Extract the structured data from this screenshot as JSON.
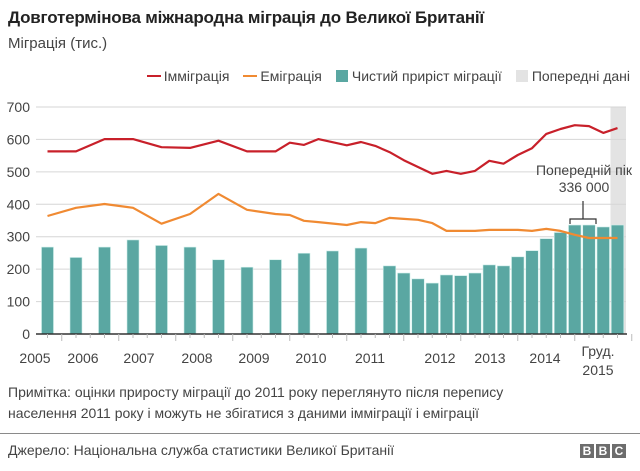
{
  "header": {
    "title": "Довготермінова міжнародна міграція до Великої Британії",
    "subtitle": "Міграція (тис.)"
  },
  "legend": [
    {
      "label": "Імміграція",
      "kind": "line",
      "color": "#c8202a"
    },
    {
      "label": "Еміграція",
      "kind": "line",
      "color": "#f08a32"
    },
    {
      "label": "Чистий приріст міграції",
      "kind": "box",
      "color": "#5aa7a2"
    },
    {
      "label": "Попередні дані",
      "kind": "box",
      "color": "#e3e3e3"
    }
  ],
  "annotation": {
    "line1": "Попередній пік",
    "line2": "336 000"
  },
  "footer": {
    "note_line1": "Примітка: оцінки приросту міграції до 2011 року переглянуто після перепису",
    "note_line2": "населення 2011 року і можуть не збігатися з даними імміграції і еміграції",
    "source": "Джерело: Національна служба статистики Великої Британії",
    "logo": [
      "B",
      "B",
      "C"
    ]
  },
  "chart_data": {
    "type": "bar",
    "title": "Довготермінова міжнародна міграція до Великої Британії",
    "ylabel": "Міграція (тис.)",
    "xlabel": "",
    "ylim": [
      0,
      700
    ],
    "yticks": [
      0,
      100,
      200,
      300,
      400,
      500,
      600,
      700
    ],
    "grid": true,
    "legend_position": "top-right",
    "x_tick_labels": [
      {
        "label": "2005",
        "t": 2005.0
      },
      {
        "label": "2006",
        "t": 2006.0
      },
      {
        "label": "2007",
        "t": 2007.0
      },
      {
        "label": "2008",
        "t": 2008.0
      },
      {
        "label": "2009",
        "t": 2009.0
      },
      {
        "label": "2010",
        "t": 2010.0
      },
      {
        "label": "2011",
        "t": 2011.0
      },
      {
        "label": "2012",
        "t": 2012.0
      },
      {
        "label": "2013",
        "t": 2013.0
      },
      {
        "label": "2014",
        "t": 2014.0
      },
      {
        "label": "Груд.",
        "label2": "2015",
        "t": 2015.0
      }
    ],
    "provisional_range": [
      "2014 Q4",
      "2015 Q4"
    ],
    "series": [
      {
        "name": "Імміграція",
        "type": "line",
        "color": "#c8202a",
        "points": [
          {
            "x": "2004 Q4",
            "y": 563
          },
          {
            "x": "2005 Q2",
            "y": 563
          },
          {
            "x": "2005 Q4",
            "y": 601
          },
          {
            "x": "2006 Q2",
            "y": 601
          },
          {
            "x": "2006 Q4",
            "y": 576
          },
          {
            "x": "2007 Q2",
            "y": 574
          },
          {
            "x": "2007 Q4",
            "y": 596
          },
          {
            "x": "2008 Q2",
            "y": 563
          },
          {
            "x": "2008 Q4",
            "y": 563
          },
          {
            "x": "2009 Q1",
            "y": 590
          },
          {
            "x": "2009 Q2",
            "y": 583
          },
          {
            "x": "2009 Q3",
            "y": 601
          },
          {
            "x": "2010 Q1",
            "y": 582
          },
          {
            "x": "2010 Q2",
            "y": 592
          },
          {
            "x": "2010 Q3",
            "y": 580
          },
          {
            "x": "2010 Q4",
            "y": 561
          },
          {
            "x": "2011 Q1",
            "y": 536
          },
          {
            "x": "2011 Q2",
            "y": 515
          },
          {
            "x": "2011 Q3",
            "y": 494
          },
          {
            "x": "2011 Q4",
            "y": 503
          },
          {
            "x": "2012 Q1",
            "y": 494
          },
          {
            "x": "2012 Q2",
            "y": 503
          },
          {
            "x": "2012 Q3",
            "y": 534
          },
          {
            "x": "2012 Q4",
            "y": 525
          },
          {
            "x": "2013 Q1",
            "y": 552
          },
          {
            "x": "2013 Q2",
            "y": 573
          },
          {
            "x": "2013 Q3",
            "y": 617
          },
          {
            "x": "2013 Q4",
            "y": 632
          },
          {
            "x": "2014 Q1",
            "y": 644
          },
          {
            "x": "2014 Q2",
            "y": 641
          },
          {
            "x": "2014 Q3",
            "y": 620
          },
          {
            "x": "2014 Q4",
            "y": 635
          }
        ]
      },
      {
        "name": "Еміграція",
        "type": "line",
        "color": "#f08a32",
        "points": [
          {
            "x": "2004 Q4",
            "y": 364
          },
          {
            "x": "2005 Q2",
            "y": 389
          },
          {
            "x": "2005 Q4",
            "y": 401
          },
          {
            "x": "2006 Q2",
            "y": 389
          },
          {
            "x": "2006 Q4",
            "y": 340
          },
          {
            "x": "2007 Q2",
            "y": 370
          },
          {
            "x": "2007 Q4",
            "y": 432
          },
          {
            "x": "2008 Q2",
            "y": 383
          },
          {
            "x": "2008 Q4",
            "y": 370
          },
          {
            "x": "2009 Q1",
            "y": 367
          },
          {
            "x": "2009 Q2",
            "y": 349
          },
          {
            "x": "2009 Q3",
            "y": 345
          },
          {
            "x": "2010 Q1",
            "y": 336
          },
          {
            "x": "2010 Q2",
            "y": 345
          },
          {
            "x": "2010 Q3",
            "y": 342
          },
          {
            "x": "2010 Q4",
            "y": 358
          },
          {
            "x": "2011 Q1",
            "y": 355
          },
          {
            "x": "2011 Q2",
            "y": 352
          },
          {
            "x": "2011 Q3",
            "y": 342
          },
          {
            "x": "2011 Q4",
            "y": 318
          },
          {
            "x": "2012 Q1",
            "y": 318
          },
          {
            "x": "2012 Q2",
            "y": 318
          },
          {
            "x": "2012 Q3",
            "y": 321
          },
          {
            "x": "2012 Q4",
            "y": 321
          },
          {
            "x": "2013 Q1",
            "y": 321
          },
          {
            "x": "2013 Q2",
            "y": 318
          },
          {
            "x": "2013 Q3",
            "y": 324
          },
          {
            "x": "2013 Q4",
            "y": 318
          },
          {
            "x": "2014 Q1",
            "y": 306
          },
          {
            "x": "2014 Q2",
            "y": 296
          },
          {
            "x": "2014 Q3",
            "y": 296
          },
          {
            "x": "2014 Q4",
            "y": 296
          }
        ]
      },
      {
        "name": "Чистий приріст міграції",
        "type": "bar",
        "color": "#5aa7a2",
        "points": [
          {
            "x": "2004 Q4",
            "y": 268
          },
          {
            "x": "2005 Q2",
            "y": 236
          },
          {
            "x": "2005 Q4",
            "y": 268
          },
          {
            "x": "2006 Q2",
            "y": 290
          },
          {
            "x": "2006 Q4",
            "y": 273
          },
          {
            "x": "2007 Q2",
            "y": 268
          },
          {
            "x": "2007 Q4",
            "y": 229
          },
          {
            "x": "2008 Q2",
            "y": 206
          },
          {
            "x": "2008 Q4",
            "y": 229
          },
          {
            "x": "2009 Q2",
            "y": 249
          },
          {
            "x": "2009 Q4",
            "y": 256
          },
          {
            "x": "2010 Q2",
            "y": 265
          },
          {
            "x": "2010 Q4",
            "y": 210
          },
          {
            "x": "2011 Q1",
            "y": 188
          },
          {
            "x": "2011 Q2",
            "y": 170
          },
          {
            "x": "2011 Q3",
            "y": 157
          },
          {
            "x": "2011 Q4",
            "y": 182
          },
          {
            "x": "2012 Q1",
            "y": 180
          },
          {
            "x": "2012 Q2",
            "y": 188
          },
          {
            "x": "2012 Q3",
            "y": 213
          },
          {
            "x": "2012 Q4",
            "y": 210
          },
          {
            "x": "2013 Q1",
            "y": 238
          },
          {
            "x": "2013 Q2",
            "y": 257
          },
          {
            "x": "2013 Q3",
            "y": 294
          },
          {
            "x": "2013 Q4",
            "y": 313
          },
          {
            "x": "2014 Q1",
            "y": 336
          },
          {
            "x": "2014 Q2",
            "y": 336
          },
          {
            "x": "2014 Q3",
            "y": 330
          },
          {
            "x": "2014 Q4",
            "y": 336
          }
        ]
      }
    ]
  }
}
